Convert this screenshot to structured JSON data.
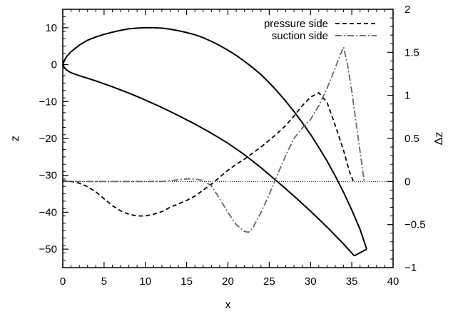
{
  "chart_data": {
    "type": "line",
    "xlabel": "x",
    "ylabel_left": "z",
    "ylabel_right": "Δz",
    "xlim": [
      0,
      40
    ],
    "ylim_left": [
      -55,
      15
    ],
    "ylim_right": [
      -1,
      2
    ],
    "x_ticks": [
      "0",
      "5",
      "10",
      "15",
      "20",
      "25",
      "30",
      "35",
      "40"
    ],
    "y_left_ticks": [
      "10",
      "0",
      "−10",
      "−20",
      "−30",
      "−40",
      "−50"
    ],
    "y_right_ticks": [
      "2",
      "1.5",
      "1",
      "0.5",
      "0",
      "−0.5",
      "−1"
    ],
    "legend": {
      "placement": "top-right",
      "entries": [
        "pressure side",
        "suction side"
      ]
    },
    "zero_line": {
      "axis": "right",
      "y": 0,
      "style": "dotted"
    },
    "airfoil": {
      "axis": "left",
      "upper": [
        [
          0,
          0
        ],
        [
          0.2,
          1.2
        ],
        [
          0.5,
          2.3
        ],
        [
          1,
          3.5
        ],
        [
          2,
          5.3
        ],
        [
          3,
          6.6
        ],
        [
          4,
          7.5
        ],
        [
          5,
          8.2
        ],
        [
          6,
          8.8
        ],
        [
          7,
          9.3
        ],
        [
          8,
          9.7
        ],
        [
          9,
          9.9
        ],
        [
          10,
          10
        ],
        [
          11,
          10
        ],
        [
          12,
          9.9
        ],
        [
          13,
          9.6
        ],
        [
          14,
          9.2
        ],
        [
          15,
          8.7
        ],
        [
          16,
          8.1
        ],
        [
          17,
          7.3
        ],
        [
          18,
          6.3
        ],
        [
          19,
          5.2
        ],
        [
          20,
          3.9
        ],
        [
          21,
          2.5
        ],
        [
          22,
          0.9
        ],
        [
          23,
          -0.8
        ],
        [
          24,
          -2.7
        ],
        [
          25,
          -4.9
        ],
        [
          26,
          -7.3
        ],
        [
          27,
          -9.9
        ],
        [
          28,
          -12.7
        ],
        [
          29,
          -15.7
        ],
        [
          30,
          -18.9
        ],
        [
          31,
          -22.4
        ],
        [
          32,
          -26.1
        ],
        [
          33,
          -30.2
        ],
        [
          34,
          -34.6
        ],
        [
          35,
          -39.4
        ],
        [
          36,
          -44.6
        ],
        [
          36.8,
          -50
        ]
      ],
      "trailing_edge": [
        [
          36.8,
          -50
        ],
        [
          35.3,
          -51.8
        ]
      ],
      "lower": [
        [
          35.3,
          -51.8
        ],
        [
          34,
          -48.6
        ],
        [
          32,
          -44
        ],
        [
          30,
          -39.7
        ],
        [
          28,
          -35.6
        ],
        [
          26,
          -31.7
        ],
        [
          24,
          -27.9
        ],
        [
          22,
          -24.4
        ],
        [
          20,
          -21.3
        ],
        [
          18,
          -18.6
        ],
        [
          16,
          -16.1
        ],
        [
          14,
          -13.8
        ],
        [
          12,
          -11.6
        ],
        [
          10,
          -9.6
        ],
        [
          8,
          -7.7
        ],
        [
          6,
          -6
        ],
        [
          4,
          -4.4
        ],
        [
          2,
          -3
        ],
        [
          1,
          -2.2
        ],
        [
          0.5,
          -1.5
        ],
        [
          0.2,
          -0.8
        ],
        [
          0,
          0
        ]
      ]
    },
    "series": [
      {
        "name": "pressure side",
        "axis": "right",
        "dash": "6,4",
        "color": "#000000",
        "points": [
          [
            0,
            0.01
          ],
          [
            1,
            0
          ],
          [
            2,
            -0.02
          ],
          [
            3,
            -0.06
          ],
          [
            4,
            -0.12
          ],
          [
            5,
            -0.2
          ],
          [
            6,
            -0.28
          ],
          [
            7,
            -0.34
          ],
          [
            8,
            -0.38
          ],
          [
            9,
            -0.4
          ],
          [
            10,
            -0.4
          ],
          [
            11,
            -0.38
          ],
          [
            12,
            -0.35
          ],
          [
            13,
            -0.3
          ],
          [
            14,
            -0.26
          ],
          [
            15,
            -0.22
          ],
          [
            16,
            -0.17
          ],
          [
            17,
            -0.1
          ],
          [
            18,
            -0.03
          ],
          [
            19,
            0.05
          ],
          [
            20,
            0.13
          ],
          [
            21,
            0.2
          ],
          [
            22,
            0.26
          ],
          [
            23,
            0.33
          ],
          [
            24,
            0.4
          ],
          [
            25,
            0.48
          ],
          [
            26,
            0.56
          ],
          [
            27,
            0.65
          ],
          [
            28,
            0.76
          ],
          [
            29,
            0.88
          ],
          [
            30,
            0.98
          ],
          [
            31,
            1.03
          ],
          [
            32,
            0.92
          ],
          [
            33,
            0.65
          ],
          [
            34,
            0.36
          ],
          [
            34.7,
            0.12
          ],
          [
            35.2,
            0
          ]
        ]
      },
      {
        "name": "suction side",
        "axis": "right",
        "dash": "9,3,2,3",
        "color": "#666666",
        "points": [
          [
            0,
            0
          ],
          [
            2,
            0
          ],
          [
            4,
            0
          ],
          [
            6,
            0
          ],
          [
            8,
            0
          ],
          [
            10,
            0
          ],
          [
            12,
            0
          ],
          [
            13,
            0.01
          ],
          [
            14,
            0.02
          ],
          [
            15,
            0.03
          ],
          [
            16,
            0.03
          ],
          [
            17,
            0.01
          ],
          [
            18,
            -0.05
          ],
          [
            19,
            -0.2
          ],
          [
            20,
            -0.36
          ],
          [
            21,
            -0.5
          ],
          [
            22,
            -0.58
          ],
          [
            22.5,
            -0.59
          ],
          [
            23,
            -0.54
          ],
          [
            24,
            -0.36
          ],
          [
            25,
            -0.15
          ],
          [
            26,
            0.08
          ],
          [
            27,
            0.3
          ],
          [
            28,
            0.5
          ],
          [
            29,
            0.62
          ],
          [
            30,
            0.72
          ],
          [
            31,
            0.88
          ],
          [
            32,
            1.08
          ],
          [
            33,
            1.32
          ],
          [
            33.5,
            1.45
          ],
          [
            34,
            1.56
          ],
          [
            34.5,
            1.35
          ],
          [
            35,
            1.05
          ],
          [
            35.5,
            0.7
          ],
          [
            36,
            0.35
          ],
          [
            36.5,
            0
          ]
        ]
      }
    ]
  }
}
